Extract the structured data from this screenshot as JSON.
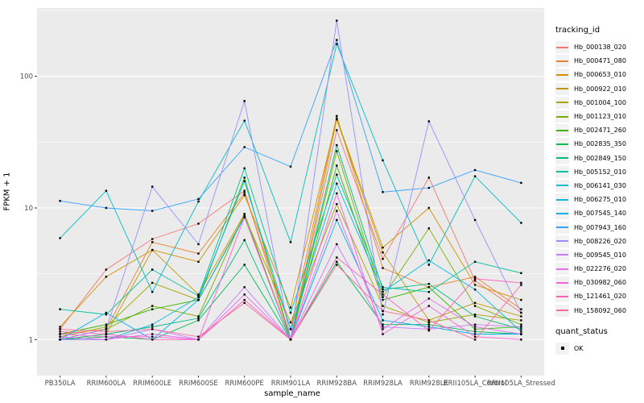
{
  "chart": {
    "legend_tracking_title": "tracking_id",
    "legend_quant_title": "quant_status",
    "quant_ok_label": "OK"
  },
  "chart_data": {
    "type": "line",
    "title": "",
    "xlabel": "sample_name",
    "ylabel": "FPKM + 1",
    "y_scale": "log10",
    "y_ticks": [
      1,
      10,
      100
    ],
    "ylim": [
      0.55,
      320
    ],
    "grid": "on",
    "legend_position": "right",
    "panel_bg": "#EBEBEB",
    "grid_color": "#FFFFFF",
    "legend_key_bg": "#F2F2F2",
    "point_color": "#000000",
    "point_status_label": "OK",
    "categories": [
      "PB350LA",
      "RRIM600LA",
      "RRIM600LE",
      "RRIM600SE",
      "RRIM600PE",
      "RRIM901LA",
      "RRIM928BA",
      "RRIM928LA",
      "RRIM928LE",
      "RRII105LA_Control",
      "RRII105LA_Stressed"
    ],
    "series": [
      {
        "name": "Hb_000138_020",
        "color": "#F8766D",
        "values": [
          1.2,
          3.4,
          5.8,
          7.6,
          13.5,
          1.0,
          39,
          4.1,
          17,
          2.8,
          1.6
        ]
      },
      {
        "name": "Hb_000471_080",
        "color": "#EA8331",
        "values": [
          1.1,
          1.2,
          5.5,
          4.5,
          13,
          1.2,
          50,
          3.5,
          2.5,
          3.0,
          1.7
        ]
      },
      {
        "name": "Hb_000653_010",
        "color": "#D89000",
        "values": [
          1.25,
          3.0,
          4.8,
          3.9,
          12.5,
          1.75,
          48,
          5.0,
          10,
          2.6,
          2.0
        ]
      },
      {
        "name": "Hb_000922_010",
        "color": "#C09B00",
        "values": [
          1.0,
          1.1,
          4.8,
          2.2,
          9.0,
          1.0,
          47,
          4.6,
          1.4,
          1.9,
          1.5
        ]
      },
      {
        "name": "Hb_001004_100",
        "color": "#A3A500",
        "values": [
          1.05,
          1.25,
          2.7,
          2.0,
          8.7,
          1.35,
          10.7,
          1.8,
          1.35,
          1.55,
          1.4
        ]
      },
      {
        "name": "Hb_001123_010",
        "color": "#7CAE00",
        "values": [
          1.0,
          1.2,
          1.8,
          1.5,
          9.0,
          1.0,
          27,
          2.1,
          7.0,
          1.8,
          1.3
        ]
      },
      {
        "name": "Hb_002471_260",
        "color": "#39B600",
        "values": [
          1.1,
          1.3,
          1.7,
          2.0,
          17,
          1.0,
          21,
          2.0,
          2.5,
          1.2,
          1.25
        ]
      },
      {
        "name": "Hb_002835_350",
        "color": "#00BB4E",
        "values": [
          1.0,
          1.05,
          1.0,
          1.4,
          3.7,
          1.0,
          3.9,
          1.3,
          1.3,
          1.15,
          1.1
        ]
      },
      {
        "name": "Hb_002849_150",
        "color": "#00BF7D",
        "values": [
          1.0,
          1.1,
          1.25,
          1.45,
          5.7,
          1.0,
          30,
          2.4,
          2.65,
          1.5,
          1.2
        ]
      },
      {
        "name": "Hb_005152_010",
        "color": "#00C1A3",
        "values": [
          1.7,
          1.55,
          3.4,
          2.15,
          20,
          1.6,
          17.9,
          2.5,
          2.3,
          3.9,
          3.2
        ]
      },
      {
        "name": "Hb_006141_030",
        "color": "#00BFC4",
        "values": [
          5.9,
          13.5,
          2.3,
          11.2,
          46,
          5.5,
          176,
          23,
          3.7,
          17.4,
          7.7
        ]
      },
      {
        "name": "Hb_006275_010",
        "color": "#00BAE0",
        "values": [
          1.0,
          1.0,
          1.3,
          2.1,
          16,
          1.2,
          15.3,
          2.3,
          4.0,
          2.4,
          1.15
        ]
      },
      {
        "name": "Hb_007545_140",
        "color": "#00B0F6",
        "values": [
          1.0,
          1.6,
          1.0,
          2.0,
          8.5,
          1.0,
          8.1,
          1.4,
          1.25,
          1.1,
          1.1
        ]
      },
      {
        "name": "Hb_007943_160",
        "color": "#35A2FF",
        "values": [
          11.3,
          10,
          9.5,
          11.7,
          29,
          20.6,
          189,
          13.2,
          14.2,
          19.4,
          15.5
        ]
      },
      {
        "name": "Hb_008226_020",
        "color": "#9590FF",
        "values": [
          1.0,
          1.2,
          14.5,
          5.3,
          65,
          1.0,
          265,
          1.55,
          45.5,
          8.1,
          1.6
        ]
      },
      {
        "name": "Hb_009545_010",
        "color": "#C77CFF",
        "values": [
          1.0,
          1.0,
          1.2,
          1.0,
          2.5,
          1.0,
          5.3,
          1.25,
          1.2,
          1.3,
          1.25
        ]
      },
      {
        "name": "Hb_022276_020",
        "color": "#E76BF3",
        "values": [
          1.05,
          1.0,
          1.1,
          1.0,
          2.2,
          1.0,
          9.5,
          1.2,
          2.05,
          1.25,
          1.1
        ]
      },
      {
        "name": "Hb_030982_060",
        "color": "#FA62DB",
        "values": [
          1.1,
          1.05,
          1.05,
          1.0,
          8.5,
          1.0,
          12.9,
          1.1,
          1.8,
          1.05,
          1.0
        ]
      },
      {
        "name": "Hb_121461_020",
        "color": "#FF62BC",
        "values": [
          1.15,
          1.1,
          1.0,
          1.0,
          2.0,
          1.0,
          4.2,
          2.2,
          1.17,
          2.9,
          2.7
        ]
      },
      {
        "name": "Hb_158092_060",
        "color": "#FF6A98",
        "values": [
          1.2,
          1.15,
          1.2,
          1.05,
          1.9,
          1.0,
          3.7,
          1.65,
          1.4,
          1.0,
          2.6
        ]
      }
    ]
  }
}
